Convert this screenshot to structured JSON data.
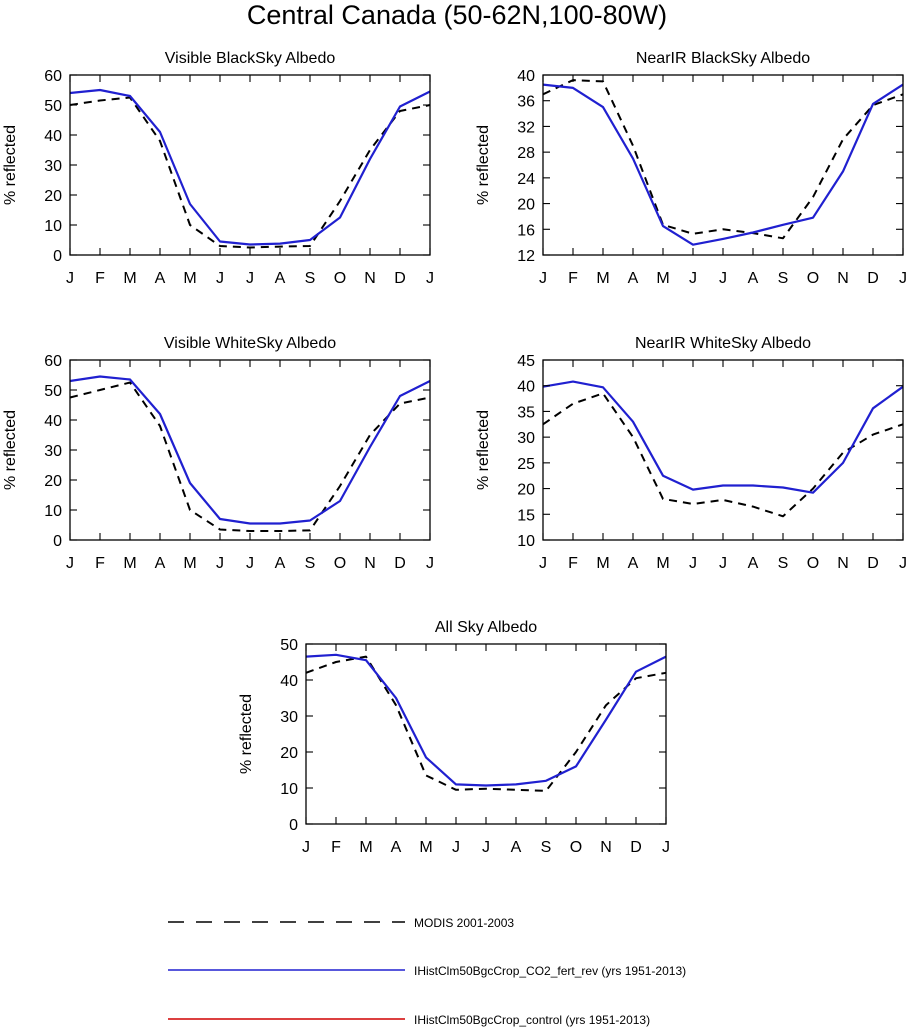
{
  "figure": {
    "title": "Central Canada (50-62N,100-80W)"
  },
  "colors": {
    "obs": "#000000",
    "exp": "#2020d0",
    "ctl": "#d00000"
  },
  "chart_data": [
    {
      "type": "line",
      "title": "Visible BlackSky Albedo",
      "ylabel": "% reflected",
      "xlabel": "",
      "categories": [
        "J",
        "F",
        "M",
        "A",
        "M",
        "J",
        "J",
        "A",
        "S",
        "O",
        "N",
        "D",
        "J"
      ],
      "ylim": [
        0,
        60
      ],
      "yticks": [
        0,
        10,
        20,
        30,
        40,
        50,
        60
      ],
      "grid": false,
      "series": [
        {
          "name": "MODIS 2001-2003",
          "values": [
            50,
            51.5,
            52.5,
            38,
            10,
            3,
            2.5,
            2.8,
            3,
            18,
            35,
            48,
            50
          ]
        },
        {
          "name": "IHistClm50BgcCrop_CO2_fert_rev (yrs 1951-2013)",
          "values": [
            54,
            55,
            53,
            41,
            17,
            4.5,
            3.5,
            3.8,
            5,
            12.5,
            32,
            49.5,
            54.5
          ]
        }
      ]
    },
    {
      "type": "line",
      "title": "NearIR BlackSky Albedo",
      "ylabel": "% reflected",
      "xlabel": "",
      "categories": [
        "J",
        "F",
        "M",
        "A",
        "M",
        "J",
        "J",
        "A",
        "S",
        "O",
        "N",
        "D",
        "J"
      ],
      "ylim": [
        12,
        40
      ],
      "yticks": [
        12,
        16,
        20,
        24,
        28,
        32,
        36,
        40
      ],
      "grid": false,
      "series": [
        {
          "name": "MODIS 2001-2003",
          "values": [
            37,
            39.2,
            39,
            29,
            16.7,
            15.3,
            16,
            15.4,
            14.6,
            21,
            30,
            35.3,
            37
          ]
        },
        {
          "name": "IHistClm50BgcCrop_CO2_fert_rev (yrs 1951-2013)",
          "values": [
            38.5,
            38,
            35,
            27,
            16.5,
            13.6,
            14.5,
            15.5,
            16.7,
            17.8,
            25,
            35.5,
            38.5
          ]
        }
      ]
    },
    {
      "type": "line",
      "title": "Visible WhiteSky Albedo",
      "ylabel": "% reflected",
      "xlabel": "",
      "categories": [
        "J",
        "F",
        "M",
        "A",
        "M",
        "J",
        "J",
        "A",
        "S",
        "O",
        "N",
        "D",
        "J"
      ],
      "ylim": [
        0,
        60
      ],
      "yticks": [
        0,
        10,
        20,
        30,
        40,
        50,
        60
      ],
      "grid": false,
      "series": [
        {
          "name": "MODIS 2001-2003",
          "values": [
            47.5,
            50,
            52.5,
            38,
            10,
            3.5,
            3,
            3,
            3.2,
            18,
            35,
            45.5,
            47.5
          ]
        },
        {
          "name": "IHistClm50BgcCrop_CO2_fert_rev (yrs 1951-2013)",
          "values": [
            53,
            54.5,
            53.5,
            42,
            19,
            7,
            5.5,
            5.5,
            6.5,
            13,
            31,
            48,
            53
          ]
        }
      ]
    },
    {
      "type": "line",
      "title": "NearIR WhiteSky Albedo",
      "ylabel": "% reflected",
      "xlabel": "",
      "categories": [
        "J",
        "F",
        "M",
        "A",
        "M",
        "J",
        "J",
        "A",
        "S",
        "O",
        "N",
        "D",
        "J"
      ],
      "ylim": [
        10,
        45
      ],
      "yticks": [
        10,
        15,
        20,
        25,
        30,
        35,
        40,
        45
      ],
      "grid": false,
      "series": [
        {
          "name": "MODIS 2001-2003",
          "values": [
            32.5,
            36.5,
            38.5,
            30,
            18,
            17,
            17.8,
            16.5,
            14.6,
            20,
            27,
            30.5,
            32.5
          ]
        },
        {
          "name": "IHistClm50BgcCrop_CO2_fert_rev (yrs 1951-2013)",
          "values": [
            39.8,
            40.8,
            39.7,
            33,
            22.5,
            19.8,
            20.6,
            20.6,
            20.2,
            19.2,
            25,
            35.6,
            39.8
          ]
        }
      ]
    },
    {
      "type": "line",
      "title": "All Sky Albedo",
      "ylabel": "% reflected",
      "xlabel": "",
      "categories": [
        "J",
        "F",
        "M",
        "A",
        "M",
        "J",
        "J",
        "A",
        "S",
        "O",
        "N",
        "D",
        "J"
      ],
      "ylim": [
        0,
        50
      ],
      "yticks": [
        0,
        10,
        20,
        30,
        40,
        50
      ],
      "grid": false,
      "series": [
        {
          "name": "MODIS 2001-2003",
          "values": [
            42,
            45,
            46.5,
            33,
            13.5,
            9.5,
            9.8,
            9.5,
            9.2,
            20,
            33,
            40.5,
            42
          ]
        },
        {
          "name": "IHistClm50BgcCrop_CO2_fert_rev (yrs 1951-2013)",
          "values": [
            46.5,
            47,
            45.5,
            35,
            18.5,
            11,
            10.7,
            11,
            12,
            16,
            29,
            42.3,
            46.5
          ]
        }
      ]
    }
  ],
  "legend": {
    "placement": "bottom-center",
    "entries": [
      {
        "label": "MODIS 2001-2003",
        "style": "dashed",
        "color": "#000000"
      },
      {
        "label": "IHistClm50BgcCrop_CO2_fert_rev (yrs 1951-2013)",
        "style": "solid",
        "color": "#2020d0"
      },
      {
        "label": "IHistClm50BgcCrop_control (yrs 1951-2013)",
        "style": "solid",
        "color": "#d00000"
      }
    ]
  }
}
